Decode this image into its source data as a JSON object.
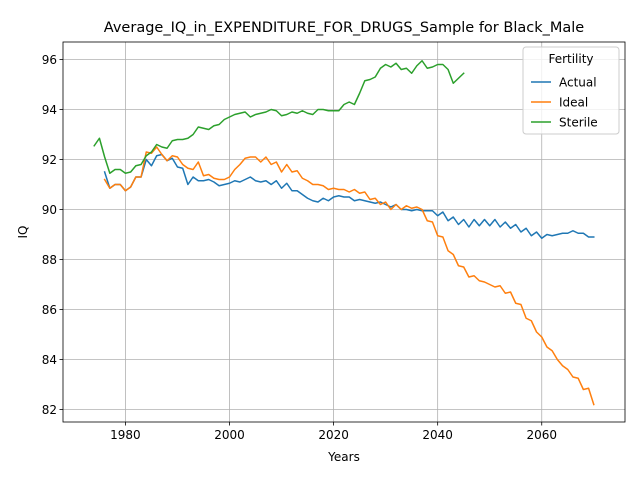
{
  "chart_data": {
    "type": "line",
    "title": "Average_IQ_in_EXPENDITURE_FOR_DRUGS_Sample for Black_Male",
    "xlabel": "Years",
    "ylabel": "IQ",
    "xlim": [
      1968,
      2076
    ],
    "ylim": [
      81.5,
      96.7
    ],
    "xticks": [
      1980,
      2000,
      2020,
      2040,
      2060
    ],
    "yticks": [
      82,
      84,
      86,
      88,
      90,
      92,
      94,
      96
    ],
    "grid": true,
    "legend": {
      "title": "Fertility",
      "placement": "top-right"
    },
    "series": [
      {
        "name": "Actual",
        "color": "#1f77b4",
        "x": [
          1976,
          1977,
          1978,
          1979,
          1980,
          1981,
          1982,
          1983,
          1984,
          1985,
          1986,
          1987,
          1988,
          1989,
          1990,
          1991,
          1992,
          1993,
          1994,
          1995,
          1996,
          1997,
          1998,
          1999,
          2000,
          2001,
          2002,
          2003,
          2004,
          2005,
          2006,
          2007,
          2008,
          2009,
          2010,
          2011,
          2012,
          2013,
          2014,
          2015,
          2016,
          2017,
          2018,
          2019,
          2020,
          2021,
          2022,
          2023,
          2024,
          2025,
          2026,
          2027,
          2028,
          2029,
          2030,
          2031,
          2032,
          2033,
          2034,
          2035,
          2036,
          2037,
          2038,
          2039,
          2040,
          2041,
          2042,
          2043,
          2044,
          2045,
          2046,
          2047,
          2048,
          2049,
          2050,
          2051,
          2052,
          2053,
          2054,
          2055,
          2056,
          2057,
          2058,
          2059,
          2060,
          2061,
          2062,
          2063,
          2064,
          2065,
          2066,
          2067,
          2068,
          2069,
          2070
        ],
        "y": [
          91.5,
          90.85,
          91.0,
          91.0,
          90.75,
          90.9,
          91.3,
          91.3,
          92.0,
          91.75,
          92.15,
          92.2,
          91.95,
          92.05,
          91.7,
          91.65,
          91.0,
          91.3,
          91.15,
          91.15,
          91.2,
          91.1,
          90.95,
          91.0,
          91.05,
          91.15,
          91.1,
          91.2,
          91.3,
          91.15,
          91.1,
          91.15,
          91.0,
          91.15,
          90.85,
          91.05,
          90.75,
          90.75,
          90.6,
          90.45,
          90.35,
          90.3,
          90.45,
          90.35,
          90.5,
          90.55,
          90.5,
          90.5,
          90.35,
          90.4,
          90.35,
          90.3,
          90.25,
          90.3,
          90.2,
          90.1,
          90.2,
          90.0,
          90.0,
          89.95,
          90.0,
          89.95,
          89.95,
          89.95,
          89.75,
          89.9,
          89.55,
          89.7,
          89.4,
          89.6,
          89.3,
          89.6,
          89.35,
          89.6,
          89.35,
          89.6,
          89.3,
          89.5,
          89.25,
          89.4,
          89.1,
          89.25,
          88.95,
          89.1,
          88.85,
          89.0,
          88.95,
          89.0,
          89.05,
          89.05,
          89.15,
          89.05,
          89.05,
          88.9,
          88.9
        ]
      },
      {
        "name": "Ideal",
        "color": "#ff7f0e",
        "x": [
          1976,
          1977,
          1978,
          1979,
          1980,
          1981,
          1982,
          1983,
          1984,
          1985,
          1986,
          1987,
          1988,
          1989,
          1990,
          1991,
          1992,
          1993,
          1994,
          1995,
          1996,
          1997,
          1998,
          1999,
          2000,
          2001,
          2002,
          2003,
          2004,
          2005,
          2006,
          2007,
          2008,
          2009,
          2010,
          2011,
          2012,
          2013,
          2014,
          2015,
          2016,
          2017,
          2018,
          2019,
          2020,
          2021,
          2022,
          2023,
          2024,
          2025,
          2026,
          2027,
          2028,
          2029,
          2030,
          2031,
          2032,
          2033,
          2034,
          2035,
          2036,
          2037,
          2038,
          2039,
          2040,
          2041,
          2042,
          2043,
          2044,
          2045,
          2046,
          2047,
          2048,
          2049,
          2050,
          2051,
          2052,
          2053,
          2054,
          2055,
          2056,
          2057,
          2058,
          2059,
          2060,
          2061,
          2062,
          2063,
          2064,
          2065,
          2066,
          2067,
          2068,
          2069,
          2070
        ],
        "y": [
          91.2,
          90.85,
          91.0,
          91.0,
          90.75,
          90.9,
          91.3,
          91.3,
          92.3,
          92.25,
          92.5,
          92.2,
          91.95,
          92.15,
          92.1,
          91.8,
          91.65,
          91.6,
          91.9,
          91.35,
          91.4,
          91.25,
          91.2,
          91.2,
          91.3,
          91.6,
          91.8,
          92.05,
          92.1,
          92.1,
          91.9,
          92.1,
          91.8,
          91.9,
          91.5,
          91.8,
          91.5,
          91.55,
          91.25,
          91.15,
          91.0,
          91.0,
          90.95,
          90.8,
          90.85,
          90.8,
          90.8,
          90.7,
          90.8,
          90.65,
          90.7,
          90.4,
          90.45,
          90.2,
          90.3,
          90.0,
          90.2,
          90.0,
          90.15,
          90.05,
          90.1,
          90.0,
          89.55,
          89.5,
          88.95,
          88.9,
          88.35,
          88.2,
          87.75,
          87.7,
          87.3,
          87.35,
          87.15,
          87.1,
          87.0,
          86.9,
          86.95,
          86.65,
          86.7,
          86.25,
          86.2,
          85.65,
          85.55,
          85.1,
          84.9,
          84.5,
          84.35,
          84.0,
          83.75,
          83.6,
          83.3,
          83.25,
          82.8,
          82.85,
          82.2
        ]
      },
      {
        "name": "Sterile",
        "color": "#2ca02c",
        "x": [
          1974,
          1975,
          1976,
          1977,
          1978,
          1979,
          1980,
          1981,
          1982,
          1983,
          1984,
          1985,
          1986,
          1987,
          1988,
          1989,
          1990,
          1991,
          1992,
          1993,
          1994,
          1995,
          1996,
          1997,
          1998,
          1999,
          2000,
          2001,
          2002,
          2003,
          2004,
          2005,
          2006,
          2007,
          2008,
          2009,
          2010,
          2011,
          2012,
          2013,
          2014,
          2015,
          2016,
          2017,
          2018,
          2019,
          2020,
          2021,
          2022,
          2023,
          2024,
          2025,
          2026,
          2027,
          2028,
          2029,
          2030,
          2031,
          2032,
          2033,
          2034,
          2035,
          2036,
          2037,
          2038,
          2039,
          2040,
          2041,
          2042,
          2043,
          2044,
          2045
        ],
        "y": [
          92.55,
          92.85,
          92.1,
          91.45,
          91.6,
          91.6,
          91.45,
          91.5,
          91.75,
          91.8,
          92.15,
          92.3,
          92.6,
          92.5,
          92.45,
          92.75,
          92.8,
          92.8,
          92.85,
          93.0,
          93.3,
          93.25,
          93.2,
          93.35,
          93.4,
          93.6,
          93.7,
          93.8,
          93.85,
          93.9,
          93.7,
          93.8,
          93.85,
          93.9,
          94.0,
          93.95,
          93.75,
          93.8,
          93.9,
          93.85,
          93.95,
          93.85,
          93.8,
          94.0,
          94.0,
          93.95,
          93.95,
          93.95,
          94.2,
          94.3,
          94.2,
          94.65,
          95.15,
          95.2,
          95.3,
          95.65,
          95.8,
          95.7,
          95.85,
          95.6,
          95.65,
          95.45,
          95.75,
          95.95,
          95.65,
          95.7,
          95.8,
          95.8,
          95.6,
          95.05,
          95.25,
          95.45
        ]
      }
    ]
  }
}
